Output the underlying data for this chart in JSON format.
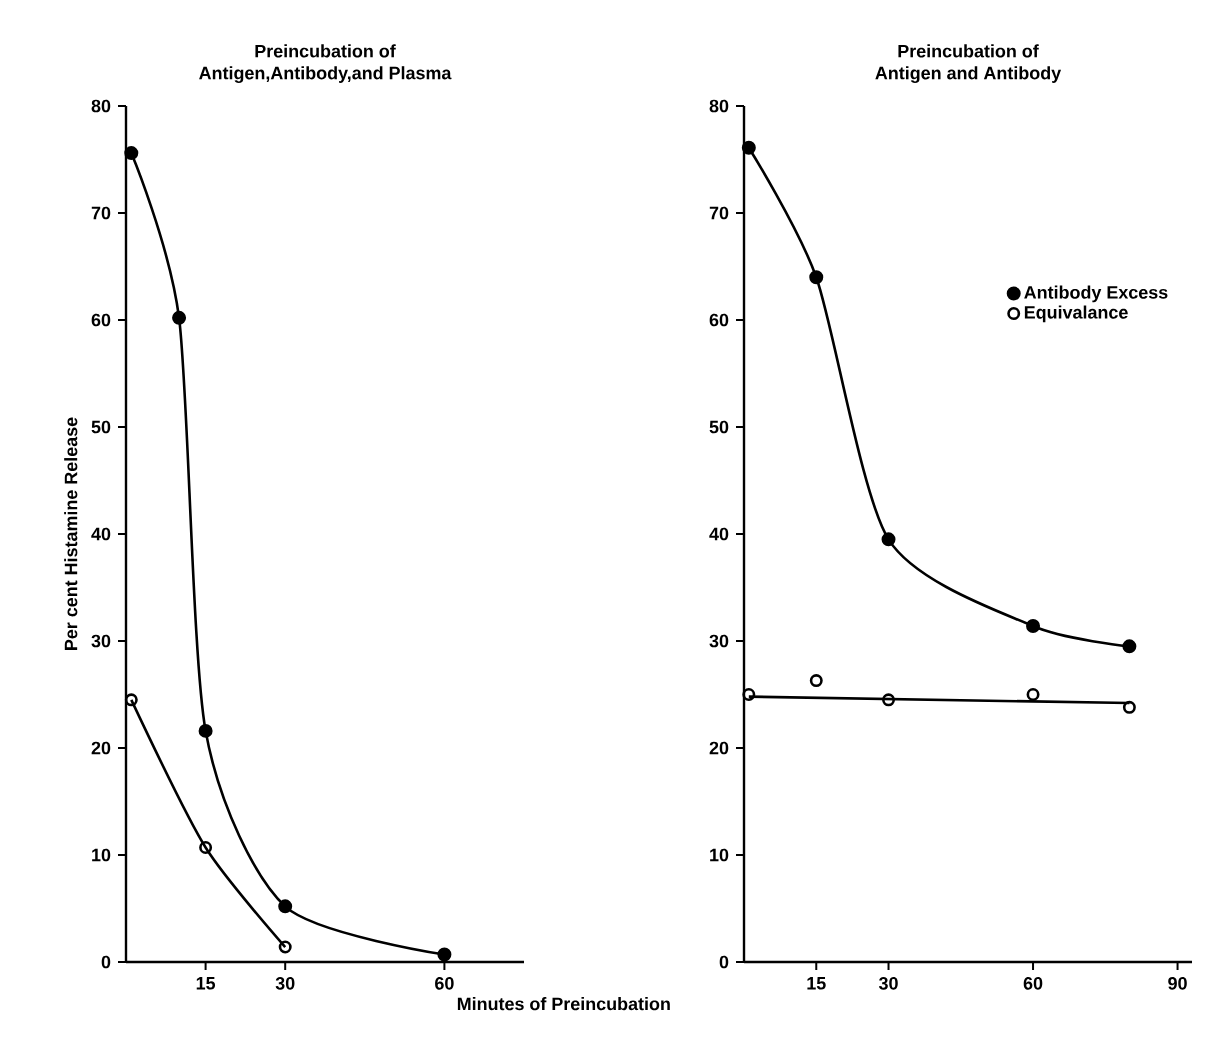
{
  "chart_data": [
    {
      "type": "line",
      "title": "Preincubation of\nAntigen,Antibody,and Plasma",
      "xlabel": "Minutes of Preincubation",
      "ylabel": "Per cent Histamine Release",
      "xlim": [
        0,
        75
      ],
      "xticks": [
        15,
        30,
        60
      ],
      "ylim": [
        0,
        80
      ],
      "yticks": [
        0,
        10,
        20,
        30,
        40,
        50,
        60,
        70,
        80
      ],
      "legend": false,
      "grid": false,
      "series": [
        {
          "color": "#000000",
          "marker": "circle",
          "x": [
            1,
            10,
            15,
            30,
            60
          ],
          "values": [
            75.6,
            60.2,
            21.6,
            5.2,
            0.7
          ]
        },
        {
          "color": "#000000",
          "marker": "open circle",
          "x": [
            1,
            15,
            30
          ],
          "values": [
            24.5,
            10.7,
            1.4
          ]
        }
      ]
    },
    {
      "type": "line",
      "title": "Preincubation of\nAntigen and Antibody",
      "xlim": [
        0,
        93
      ],
      "xticks": [
        15,
        30,
        60,
        90
      ],
      "ylim": [
        0,
        80
      ],
      "yticks": [
        0,
        10,
        20,
        30,
        40,
        50,
        60,
        70,
        80
      ],
      "legend": "top right",
      "grid": false,
      "series": [
        {
          "name": "Antibody Excess",
          "color": "#000000",
          "marker": "circle",
          "x": [
            1,
            15,
            30,
            60,
            80
          ],
          "values": [
            76.1,
            64,
            39.5,
            31.4,
            29.5
          ]
        },
        {
          "name": "Equivalance",
          "type": "scatter",
          "color": "#000000",
          "marker": "open circle",
          "x": [
            1,
            15,
            30,
            60,
            80
          ],
          "values": [
            25,
            26.3,
            24.5,
            25,
            23.8
          ]
        },
        {
          "type": "line",
          "color": "#000000",
          "marker": "none",
          "x": [
            1,
            80
          ],
          "values": [
            24.8,
            24.2
          ]
        }
      ]
    }
  ]
}
